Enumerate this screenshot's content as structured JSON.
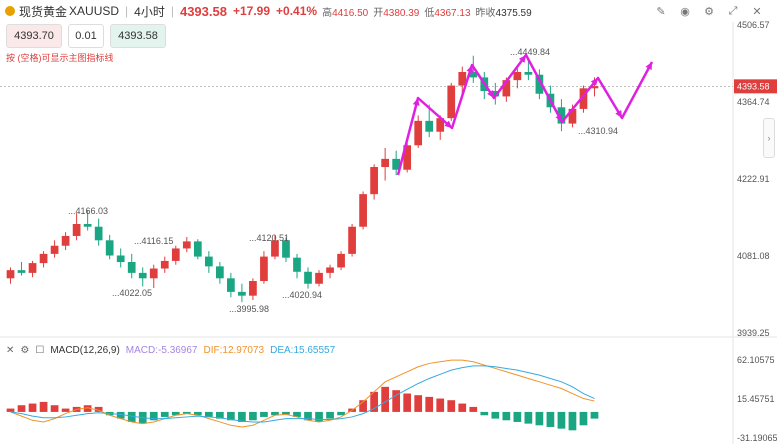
{
  "header": {
    "title": "现货黄金",
    "symbol": "XAUUSD",
    "interval": "4小时",
    "price": "4393.58",
    "change": "+17.99",
    "change_pct": "+0.41%",
    "high_label": "高",
    "high": "4416.50",
    "open_label": "开",
    "open": "4380.39",
    "low_label": "低",
    "low": "4367.13",
    "prevclose_label": "昨收",
    "prevclose": "4375.59"
  },
  "order": {
    "sell": "4393.70",
    "qty": "0.01",
    "buy": "4393.58",
    "hint": "按 (空格)可显示主图指标线"
  },
  "price_axis": [
    "4506.57",
    "4393.58",
    "4364.74",
    "4222.91",
    "4081.08",
    "3939.25"
  ],
  "annotations": [
    "4449.84",
    "4166.03",
    "4116.15",
    "4120.51",
    "4022.05",
    "4020.94",
    "3995.98",
    "4310.94"
  ],
  "macd": {
    "label": "MACD(12,26,9)",
    "macd": "MACD:-5.36967",
    "dif": "DIF:12.97073",
    "dea": "DEA:15.65557",
    "axis": [
      "62.10575",
      "15.45751",
      "-31.19065"
    ]
  },
  "colors": {
    "up": "#e03d3d",
    "down": "#1aa683",
    "dif": "#f0932b",
    "dea": "#38a9e0",
    "macd": "#a685e2",
    "arrow": "#e020e0"
  },
  "icons": [
    "brush-icon",
    "camera-icon",
    "settings-icon",
    "expand-icon",
    "close-icon"
  ],
  "chart_data": {
    "type": "candlestick",
    "note_units": "USD",
    "ylim": [
      3939.25,
      4506.57
    ],
    "candles": [
      [
        4040,
        4060,
        4030,
        4055
      ],
      [
        4055,
        4070,
        4045,
        4050
      ],
      [
        4050,
        4072,
        4042,
        4068
      ],
      [
        4068,
        4090,
        4060,
        4085
      ],
      [
        4085,
        4110,
        4078,
        4100
      ],
      [
        4100,
        4125,
        4092,
        4118
      ],
      [
        4118,
        4160,
        4110,
        4140
      ],
      [
        4140,
        4166,
        4128,
        4135
      ],
      [
        4135,
        4150,
        4100,
        4110
      ],
      [
        4110,
        4120,
        4075,
        4082
      ],
      [
        4082,
        4095,
        4060,
        4070
      ],
      [
        4070,
        4085,
        4040,
        4050
      ],
      [
        4050,
        4060,
        4025,
        4040
      ],
      [
        4040,
        4065,
        4022,
        4058
      ],
      [
        4058,
        4080,
        4050,
        4072
      ],
      [
        4072,
        4100,
        4065,
        4095
      ],
      [
        4095,
        4116,
        4088,
        4108
      ],
      [
        4108,
        4112,
        4075,
        4080
      ],
      [
        4080,
        4090,
        4050,
        4062
      ],
      [
        4062,
        4070,
        4030,
        4040
      ],
      [
        4040,
        4050,
        4005,
        4015
      ],
      [
        4015,
        4030,
        3996,
        4008
      ],
      [
        4008,
        4040,
        4000,
        4035
      ],
      [
        4035,
        4090,
        4030,
        4080
      ],
      [
        4080,
        4120,
        4075,
        4110
      ],
      [
        4110,
        4115,
        4070,
        4078
      ],
      [
        4078,
        4085,
        4040,
        4052
      ],
      [
        4052,
        4060,
        4021,
        4030
      ],
      [
        4030,
        4055,
        4025,
        4050
      ],
      [
        4050,
        4065,
        4040,
        4060
      ],
      [
        4060,
        4090,
        4055,
        4085
      ],
      [
        4085,
        4140,
        4080,
        4135
      ],
      [
        4135,
        4200,
        4130,
        4195
      ],
      [
        4195,
        4250,
        4185,
        4245
      ],
      [
        4245,
        4280,
        4220,
        4260
      ],
      [
        4260,
        4275,
        4230,
        4240
      ],
      [
        4240,
        4290,
        4235,
        4285
      ],
      [
        4285,
        4340,
        4280,
        4330
      ],
      [
        4330,
        4360,
        4300,
        4310
      ],
      [
        4310,
        4340,
        4295,
        4335
      ],
      [
        4335,
        4400,
        4330,
        4395
      ],
      [
        4395,
        4430,
        4380,
        4420
      ],
      [
        4420,
        4450,
        4400,
        4410
      ],
      [
        4410,
        4420,
        4370,
        4385
      ],
      [
        4385,
        4400,
        4360,
        4375
      ],
      [
        4375,
        4410,
        4365,
        4405
      ],
      [
        4405,
        4430,
        4390,
        4420
      ],
      [
        4420,
        4445,
        4405,
        4415
      ],
      [
        4415,
        4425,
        4370,
        4380
      ],
      [
        4380,
        4395,
        4345,
        4355
      ],
      [
        4355,
        4370,
        4311,
        4325
      ],
      [
        4325,
        4360,
        4318,
        4352
      ],
      [
        4352,
        4395,
        4345,
        4390
      ],
      [
        4390,
        4410,
        4375,
        4394
      ]
    ],
    "macd_series": {
      "dif": [
        0,
        -5,
        -10,
        -12,
        -8,
        -2,
        3,
        5,
        2,
        -4,
        -8,
        -12,
        -14,
        -12,
        -8,
        -4,
        -2,
        -4,
        -8,
        -12,
        -16,
        -18,
        -16,
        -10,
        -4,
        -3,
        -6,
        -10,
        -12,
        -10,
        -6,
        2,
        12,
        24,
        36,
        42,
        48,
        54,
        58,
        60,
        62,
        62,
        60,
        56,
        52,
        48,
        44,
        40,
        36,
        32,
        28,
        22,
        16,
        13
      ],
      "dea": [
        0,
        -2,
        -5,
        -7,
        -7,
        -6,
        -4,
        -2,
        -1,
        -2,
        -3,
        -5,
        -7,
        -8,
        -8,
        -7,
        -6,
        -5,
        -6,
        -7,
        -9,
        -11,
        -12,
        -12,
        -10,
        -8,
        -8,
        -8,
        -9,
        -9,
        -8,
        -6,
        -2,
        4,
        12,
        20,
        27,
        34,
        40,
        45,
        50,
        53,
        55,
        55,
        54,
        52,
        50,
        47,
        44,
        40,
        36,
        30,
        22,
        16
      ],
      "hist": [
        4,
        8,
        10,
        12,
        8,
        4,
        6,
        8,
        6,
        -4,
        -8,
        -12,
        -14,
        -10,
        -6,
        -4,
        -2,
        -4,
        -6,
        -8,
        -10,
        -12,
        -10,
        -6,
        -4,
        -3,
        -6,
        -10,
        -12,
        -8,
        -4,
        4,
        14,
        24,
        30,
        26,
        22,
        20,
        18,
        16,
        14,
        10,
        6,
        -4,
        -8,
        -10,
        -12,
        -14,
        -16,
        -18,
        -20,
        -22,
        -16,
        -8
      ]
    }
  }
}
